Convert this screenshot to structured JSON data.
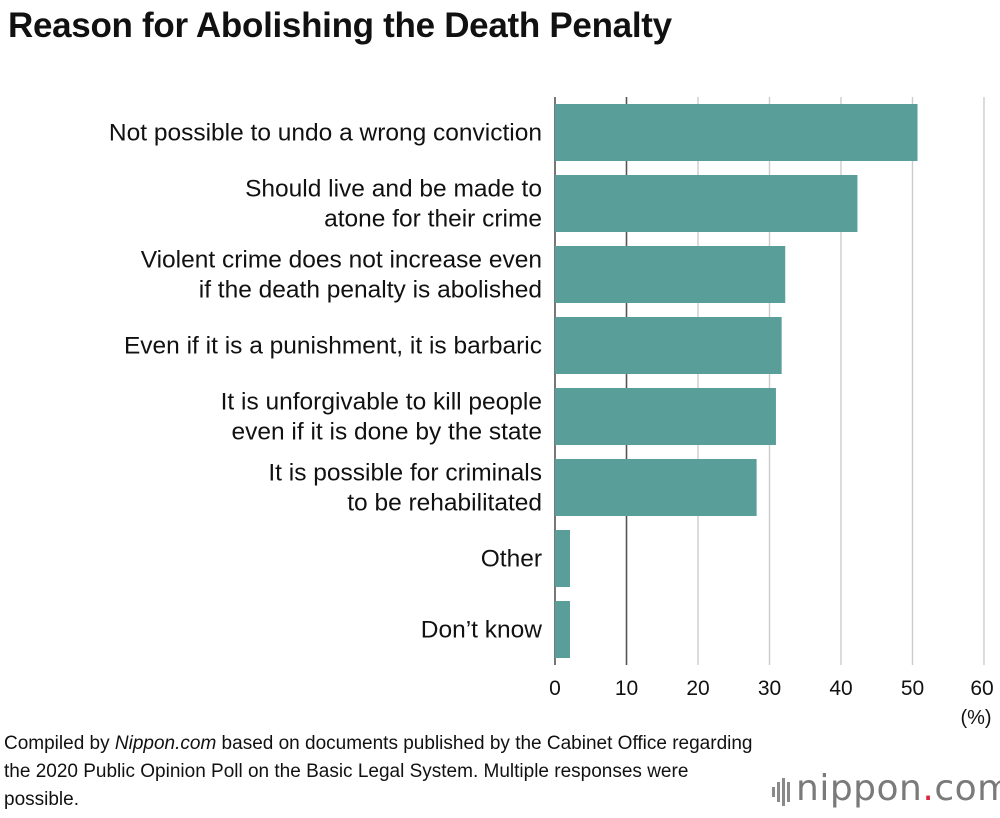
{
  "header": {
    "title": "Reason for Abolishing the Death Penalty"
  },
  "chart_data": {
    "type": "bar",
    "orientation": "horizontal",
    "title": "Reason for Abolishing the Death Penalty",
    "categories": [
      [
        "Not possible to undo a wrong conviction"
      ],
      [
        "Should live and be made to",
        "atone for their crime"
      ],
      [
        "Violent crime does not increase even",
        "if the death penalty is abolished"
      ],
      [
        "Even if it is a punishment, it is barbaric"
      ],
      [
        "It is unforgivable to kill people",
        "even if it is done by the state"
      ],
      [
        "It is possible for criminals",
        "to be rehabilitated"
      ],
      [
        "Other"
      ],
      [
        "Don’t know"
      ]
    ],
    "values": [
      50.7,
      42.3,
      32.2,
      31.7,
      30.9,
      28.2,
      2.1,
      2.1
    ],
    "xlim": [
      0,
      60
    ],
    "xticks": [
      0,
      10,
      20,
      30,
      40,
      50,
      60
    ],
    "unit_label": "(%)",
    "bar_color": "#5a9e9a",
    "grid": true
  },
  "footnote": {
    "prefix": "Compiled by ",
    "source": "Nippon.com",
    "suffix": " based on documents published by the Cabinet Office regarding the 2020 Public Opinion Poll on the Basic Legal System. Multiple responses were possible."
  },
  "logo": {
    "name": "nippon",
    "dot": ".",
    "tld": "com"
  }
}
